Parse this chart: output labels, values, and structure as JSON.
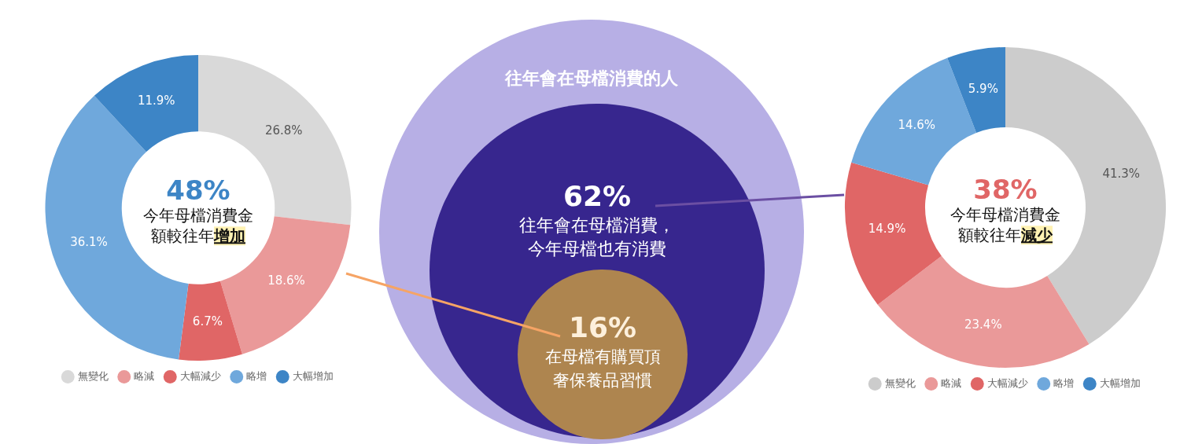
{
  "chart_data": [
    {
      "type": "donut",
      "categories": [
        "無變化",
        "略減",
        "大幅減少",
        "略增",
        "大幅增加"
      ],
      "values": [
        26.8,
        18.6,
        6.7,
        36.1,
        11.9
      ],
      "colors": [
        "#d9d9d9",
        "#ea9999",
        "#e06666",
        "#6fa8dc",
        "#3d85c6"
      ],
      "value_labels": [
        "26.8%",
        "18.6%",
        "6.7%",
        "36.1%",
        "11.9%"
      ],
      "legend": "bottom",
      "annotations": [
        "48%",
        "今年母檔消費金額較往年增加"
      ]
    },
    {
      "type": "other",
      "categories": [
        "往年會在母檔消費的人",
        "往年會在母檔消費，今年母檔也有消費",
        "在母檔有購買頂奢保養品習慣"
      ],
      "values": [
        null,
        62,
        16
      ],
      "colors": [
        "#b7afe5",
        "#37268e",
        "#ae854f"
      ],
      "value_labels": [
        null,
        "62%",
        "16%"
      ]
    },
    {
      "type": "donut",
      "categories": [
        "無變化",
        "略減",
        "大幅減少",
        "略增",
        "大幅增加"
      ],
      "values": [
        41.3,
        23.4,
        14.9,
        14.6,
        5.9
      ],
      "colors": [
        "#cccccc",
        "#ea9999",
        "#e06666",
        "#6fa8dc",
        "#3d85c6"
      ],
      "value_labels": [
        "41.3%",
        "23.4%",
        "14.9%",
        "14.6%",
        "5.9%"
      ],
      "legend": "bottom",
      "annotations": [
        "38%",
        "今年母檔消費金額較往年減少"
      ]
    }
  ]
}
